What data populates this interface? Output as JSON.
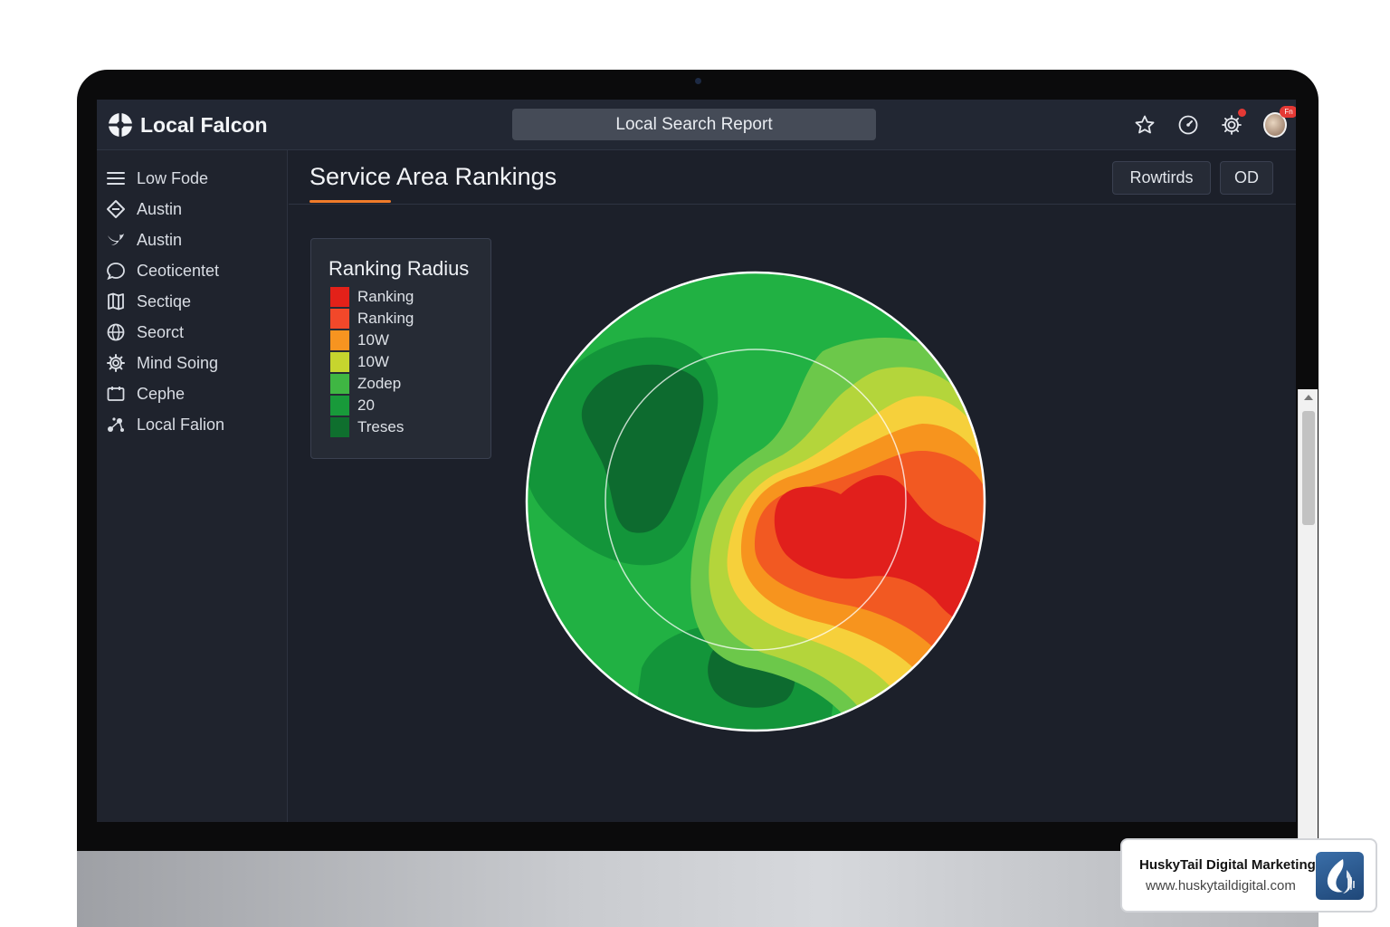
{
  "app": {
    "brand": "Local Falcon",
    "report_title": "Local Search Report",
    "avatar_badge": "Fn"
  },
  "sidebar": {
    "items": [
      {
        "label": "Low Fode",
        "icon": "menu-icon"
      },
      {
        "label": "Austin",
        "icon": "diamond-arrow-icon"
      },
      {
        "label": "Austin",
        "icon": "bird-icon"
      },
      {
        "label": "Ceoticentet",
        "icon": "chat-bubble-icon"
      },
      {
        "label": "Sectiqe",
        "icon": "map-icon"
      },
      {
        "label": "Seorct",
        "icon": "globe-icon"
      },
      {
        "label": "Mind Soing",
        "icon": "gear-icon"
      },
      {
        "label": "Cephe",
        "icon": "calendar-icon"
      },
      {
        "label": "Local Falion",
        "icon": "share-nodes-icon"
      }
    ]
  },
  "main": {
    "title": "Service Area Rankings",
    "buttons": [
      "Rowtirds",
      "OD"
    ]
  },
  "legend": {
    "title": "Ranking Radius",
    "items": [
      {
        "label": "Ranking",
        "color": "#e32119"
      },
      {
        "label": "Ranking",
        "color": "#f2482a"
      },
      {
        "label": "10W",
        "color": "#f79420"
      },
      {
        "label": "10W",
        "color": "#c6d52e"
      },
      {
        "label": "Zodep",
        "color": "#3fb643"
      },
      {
        "label": "20",
        "color": "#189a3a"
      },
      {
        "label": "Treses",
        "color": "#0f6f2e"
      }
    ]
  },
  "heatmap": {
    "colors": {
      "ring": "#ffffff",
      "base": "#21b143",
      "dark": "#0d6b2f",
      "mid": "#13953a",
      "lightgreen": "#6cc84a",
      "yellowgreen": "#b4d53b",
      "yellow": "#f6d03b",
      "orange": "#f7941e",
      "orangered": "#f25922",
      "red": "#e11f1c"
    }
  },
  "watermark": {
    "name": "HuskyTail Digital Marketing",
    "url": "www.huskytaildigital.com"
  }
}
